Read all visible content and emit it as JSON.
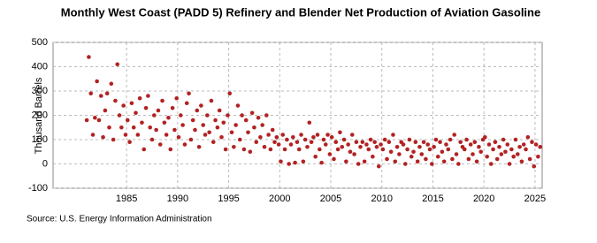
{
  "chart_data": {
    "type": "scatter",
    "title": "Monthly West Coast (PADD 5) Refinery and Blender Net Production of Aviation Gasoline",
    "y_label": "Thousand Barrels",
    "source": "Source: U.S. Energy Information Administration",
    "color": "#b22222",
    "grid": true,
    "xlim": [
      1977.8,
      2025.7
    ],
    "xticks": [
      1985,
      1990,
      1995,
      2000,
      2005,
      2010,
      2015,
      2020,
      2025
    ],
    "ylim": [
      -100,
      500
    ],
    "yticks": [
      -100,
      0,
      100,
      200,
      300,
      400,
      500
    ],
    "x": [
      1981.1,
      1981.3,
      1981.5,
      1981.7,
      1981.9,
      1982.1,
      1982.3,
      1982.5,
      1982.7,
      1982.9,
      1983.1,
      1983.3,
      1983.5,
      1983.7,
      1983.9,
      1984.1,
      1984.3,
      1984.5,
      1984.7,
      1984.9,
      1985.1,
      1985.3,
      1985.5,
      1985.7,
      1985.9,
      1986.1,
      1986.3,
      1986.5,
      1986.7,
      1986.9,
      1987.1,
      1987.3,
      1987.5,
      1987.7,
      1987.9,
      1988.1,
      1988.3,
      1988.5,
      1988.7,
      1988.9,
      1989.1,
      1989.3,
      1989.5,
      1989.7,
      1989.9,
      1990.1,
      1990.3,
      1990.5,
      1990.7,
      1990.9,
      1991.1,
      1991.3,
      1991.5,
      1991.7,
      1991.9,
      1992.1,
      1992.3,
      1992.5,
      1992.7,
      1992.9,
      1993.1,
      1993.3,
      1993.5,
      1993.7,
      1993.9,
      1994.1,
      1994.3,
      1994.5,
      1994.7,
      1994.9,
      1995.1,
      1995.3,
      1995.5,
      1995.7,
      1995.9,
      1996.1,
      1996.3,
      1996.5,
      1996.7,
      1996.9,
      1997.1,
      1997.3,
      1997.5,
      1997.7,
      1997.9,
      1998.1,
      1998.3,
      1998.5,
      1998.7,
      1998.9,
      1999.1,
      1999.3,
      1999.5,
      1999.7,
      1999.9,
      2000.1,
      2000.3,
      2000.5,
      2000.7,
      2000.9,
      2001.1,
      2001.3,
      2001.5,
      2001.7,
      2001.9,
      2002.1,
      2002.3,
      2002.5,
      2002.7,
      2002.9,
      2003.1,
      2003.3,
      2003.5,
      2003.7,
      2003.9,
      2004.1,
      2004.3,
      2004.5,
      2004.7,
      2004.9,
      2005.1,
      2005.3,
      2005.5,
      2005.7,
      2005.9,
      2006.1,
      2006.3,
      2006.5,
      2006.7,
      2006.9,
      2007.1,
      2007.3,
      2007.5,
      2007.7,
      2007.9,
      2008.1,
      2008.3,
      2008.5,
      2008.7,
      2008.9,
      2009.1,
      2009.3,
      2009.5,
      2009.7,
      2009.9,
      2010.1,
      2010.3,
      2010.5,
      2010.7,
      2010.9,
      2011.1,
      2011.3,
      2011.5,
      2011.7,
      2011.9,
      2012.1,
      2012.3,
      2012.5,
      2012.7,
      2012.9,
      2013.1,
      2013.3,
      2013.5,
      2013.7,
      2013.9,
      2014.1,
      2014.3,
      2014.5,
      2014.7,
      2014.9,
      2015.1,
      2015.3,
      2015.5,
      2015.7,
      2015.9,
      2016.1,
      2016.3,
      2016.5,
      2016.7,
      2016.9,
      2017.1,
      2017.3,
      2017.5,
      2017.7,
      2017.9,
      2018.1,
      2018.3,
      2018.5,
      2018.7,
      2018.9,
      2019.1,
      2019.3,
      2019.5,
      2019.7,
      2019.9,
      2020.1,
      2020.3,
      2020.5,
      2020.7,
      2020.9,
      2021.1,
      2021.3,
      2021.5,
      2021.7,
      2021.9,
      2022.1,
      2022.3,
      2022.5,
      2022.7,
      2022.9,
      2023.1,
      2023.3,
      2023.5,
      2023.7,
      2023.9,
      2024.1,
      2024.3,
      2024.5,
      2024.7,
      2024.9,
      2025.1,
      2025.3,
      2025.5
    ],
    "values": [
      180,
      440,
      290,
      120,
      190,
      340,
      180,
      280,
      110,
      220,
      290,
      150,
      330,
      100,
      260,
      410,
      200,
      150,
      240,
      120,
      180,
      90,
      250,
      150,
      210,
      120,
      270,
      170,
      60,
      230,
      280,
      150,
      100,
      200,
      140,
      220,
      80,
      260,
      170,
      120,
      190,
      60,
      230,
      140,
      270,
      110,
      200,
      160,
      80,
      250,
      290,
      100,
      180,
      140,
      220,
      70,
      240,
      160,
      120,
      200,
      130,
      260,
      90,
      180,
      150,
      220,
      110,
      170,
      60,
      200,
      290,
      130,
      70,
      160,
      240,
      100,
      200,
      60,
      180,
      130,
      50,
      210,
      150,
      90,
      190,
      110,
      160,
      70,
      200,
      120,
      60,
      140,
      90,
      110,
      80,
      10,
      120,
      60,
      100,
      0,
      80,
      110,
      5,
      90,
      60,
      120,
      10,
      100,
      70,
      170,
      90,
      110,
      30,
      120,
      60,
      5,
      100,
      80,
      120,
      40,
      110,
      20,
      90,
      60,
      130,
      70,
      100,
      10,
      80,
      50,
      120,
      40,
      90,
      0,
      70,
      90,
      10,
      80,
      60,
      100,
      30,
      90,
      70,
      -10,
      80,
      60,
      100,
      20,
      90,
      50,
      120,
      10,
      70,
      40,
      90,
      80,
      0,
      60,
      100,
      30,
      50,
      90,
      10,
      70,
      40,
      90,
      20,
      80,
      60,
      0,
      70,
      100,
      30,
      90,
      50,
      10,
      80,
      60,
      100,
      20,
      120,
      40,
      0,
      90,
      70,
      60,
      100,
      20,
      80,
      40,
      90,
      10,
      70,
      50,
      100,
      110,
      30,
      80,
      0,
      60,
      90,
      20,
      70,
      40,
      100,
      50,
      80,
      0,
      60,
      30,
      100,
      40,
      70,
      10,
      80,
      60,
      110,
      20,
      90,
      -10,
      80,
      30,
      70
    ]
  }
}
